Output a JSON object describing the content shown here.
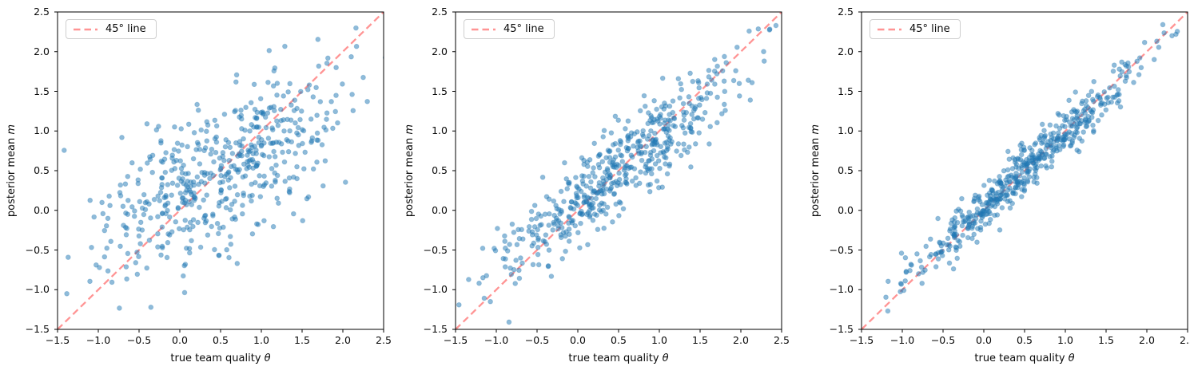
{
  "chart_data": {
    "type": "scatter",
    "layout": "three horizontal panels, shared axis ranges, legend upper-left, grid off, box spines",
    "axes": {
      "xlim": [
        -1.5,
        2.5
      ],
      "ylim": [
        -1.5,
        2.5
      ],
      "xtick_values": [
        -1.5,
        -1.0,
        -0.5,
        0.0,
        0.5,
        1.0,
        1.5,
        2.0,
        2.5
      ],
      "xtick_labels": [
        "−1.5",
        "−1.0",
        "−0.5",
        "0.0",
        "0.5",
        "1.0",
        "1.5",
        "2.0",
        "2.5"
      ],
      "ytick_values": [
        2.5,
        2.0,
        1.5,
        1.0,
        0.5,
        0.0,
        -0.5,
        -1.0,
        -1.5
      ],
      "ytick_labels": [
        "2.5",
        "2.0",
        "1.5",
        "1.0",
        "0.5",
        "0.0",
        "−0.5",
        "−1.0",
        "−1.5"
      ]
    },
    "style": {
      "point_color": "#1f77b4",
      "point_alpha": 0.5,
      "line_color": "#ff5252",
      "line_alpha": 0.62,
      "diagonal": {
        "x1": -1.5,
        "y1": -1.5,
        "x2": 2.5,
        "y2": 2.5
      }
    },
    "panels": [
      {
        "legend": "45° line",
        "xlabel": "true team quality",
        "xlabel_symbol": "θ",
        "ylabel": "posterior mean",
        "ylabel_symbol": "m",
        "n_points": 520,
        "x_mean": 0.5,
        "x_sd": 0.75,
        "trend_slope": 0.55,
        "trend_intercept": 0.2,
        "scatter_sd": 0.45,
        "render_seed": 20240101
      },
      {
        "legend": "45° line",
        "xlabel": "true team quality",
        "xlabel_symbol": "θ",
        "ylabel": "posterior mean",
        "ylabel_symbol": "m",
        "n_points": 520,
        "x_mean": 0.5,
        "x_sd": 0.75,
        "trend_slope": 0.82,
        "trend_intercept": 0.09,
        "scatter_sd": 0.28,
        "render_seed": 77007
      },
      {
        "legend": "45° line",
        "xlabel": "true team quality",
        "xlabel_symbol": "θ",
        "ylabel": "posterior mean",
        "ylabel_symbol": "m",
        "n_points": 520,
        "x_mean": 0.5,
        "x_sd": 0.75,
        "trend_slope": 0.95,
        "trend_intercept": 0.03,
        "scatter_sd": 0.15,
        "render_seed": 424242
      }
    ]
  }
}
